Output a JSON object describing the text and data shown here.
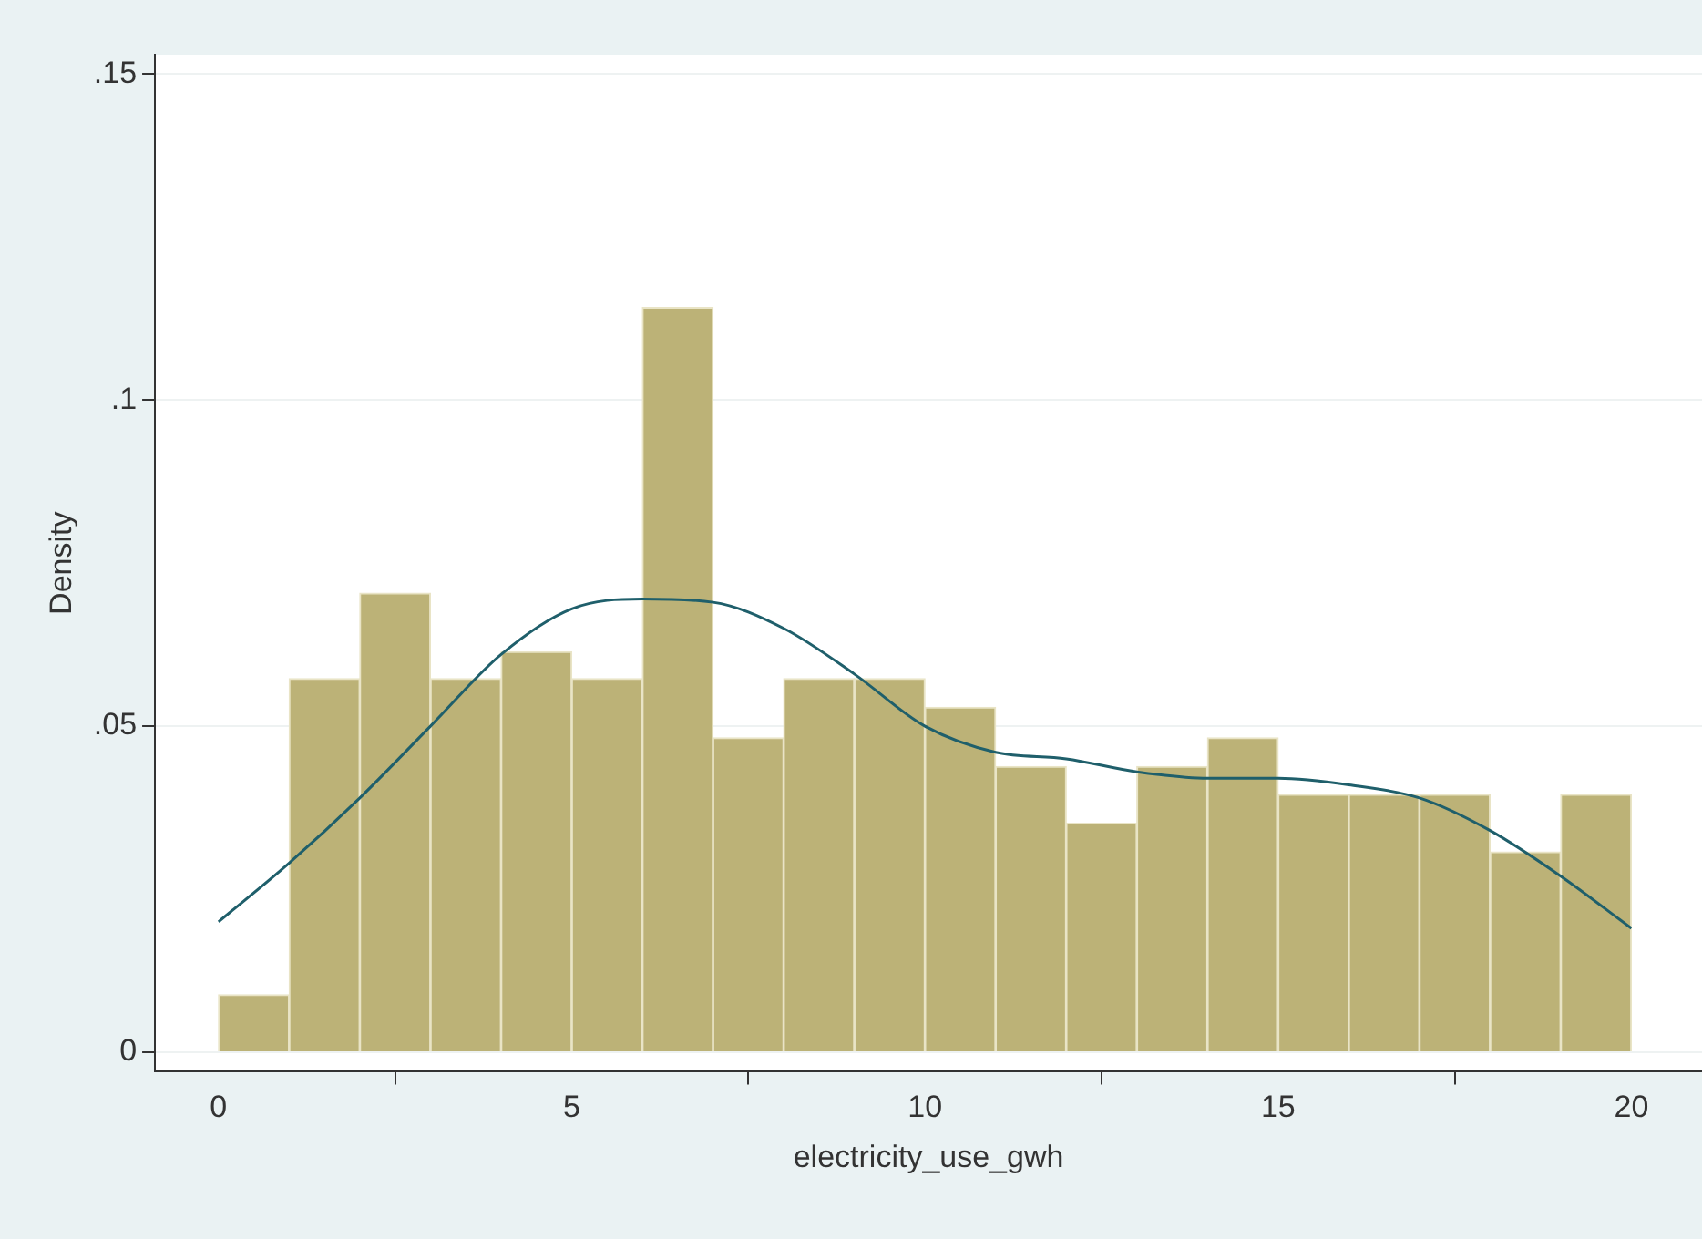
{
  "chart_data": {
    "type": "histogram",
    "xlabel": "electricity_use_gwh",
    "ylabel": "Density",
    "bins": [
      0,
      1,
      2,
      3,
      4,
      5,
      6,
      7,
      8,
      9,
      10,
      11,
      12,
      13,
      14,
      15,
      16,
      17,
      18,
      19,
      20
    ],
    "series": [
      {
        "color": "#bcb277",
        "values": [
          0.0088,
          0.0573,
          0.0704,
          0.0573,
          0.0614,
          0.0573,
          0.1142,
          0.0482,
          0.0573,
          0.0573,
          0.0529,
          0.0438,
          0.0351,
          0.0438,
          0.0482,
          0.0395,
          0.0395,
          0.0395,
          0.0307,
          0.0395
        ]
      },
      {
        "type": "line",
        "color": "#1f5f6b",
        "x": [
          0,
          1,
          2,
          3,
          4,
          5,
          6,
          7,
          8,
          9,
          10,
          11,
          12,
          13,
          14,
          15,
          16,
          17,
          18,
          19,
          20
        ],
        "values": [
          0.02,
          0.029,
          0.039,
          0.05,
          0.061,
          0.068,
          0.0695,
          0.069,
          0.065,
          0.058,
          0.05,
          0.046,
          0.045,
          0.043,
          0.042,
          0.042,
          0.041,
          0.039,
          0.034,
          0.027,
          0.019
        ]
      }
    ],
    "xlim": [
      -0.9,
      21
    ],
    "xticks": [
      0,
      5,
      10,
      15,
      20
    ],
    "ylim": [
      -0.003,
      0.153
    ],
    "yticks": [
      {
        "value": 0,
        "label": "0"
      },
      {
        "value": 0.05,
        "label": ".05"
      },
      {
        "value": 0.1,
        "label": ".1"
      },
      {
        "value": 0.15,
        "label": ".15"
      }
    ],
    "grid": "y",
    "legend": false
  }
}
